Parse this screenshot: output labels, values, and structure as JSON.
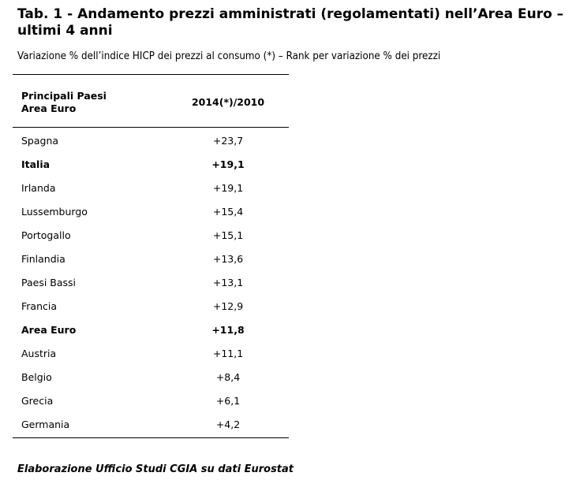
{
  "title": "Tab. 1 - Andamento prezzi amministrati (regolamentati) nell’Area Euro – ultimi 4 anni",
  "subtitle": "Variazione % dell’indice HICP dei prezzi al consumo (*) – Rank per variazione % dei prezzi",
  "table": {
    "headers": [
      "Principali Paesi Area Euro",
      "2014(*)/2010"
    ],
    "rows": [
      {
        "country": "Spagna",
        "value": "+23,7",
        "bold": false
      },
      {
        "country": "Italia",
        "value": "+19,1",
        "bold": true
      },
      {
        "country": "Irlanda",
        "value": "+19,1",
        "bold": false
      },
      {
        "country": "Lussemburgo",
        "value": "+15,4",
        "bold": false
      },
      {
        "country": "Portogallo",
        "value": "+15,1",
        "bold": false
      },
      {
        "country": "Finlandia",
        "value": "+13,6",
        "bold": false
      },
      {
        "country": "Paesi Bassi",
        "value": "+13,1",
        "bold": false
      },
      {
        "country": "Francia",
        "value": "+12,9",
        "bold": false
      },
      {
        "country": "Area Euro",
        "value": "+11,8",
        "bold": true
      },
      {
        "country": "Austria",
        "value": "+11,1",
        "bold": false
      },
      {
        "country": "Belgio",
        "value": "+8,4",
        "bold": false
      },
      {
        "country": "Grecia",
        "value": "+6,1",
        "bold": false
      },
      {
        "country": "Germania",
        "value": "+4,2",
        "bold": false
      }
    ]
  },
  "footer": "Elaborazione Ufficio Studi CGIA su dati Eurostat"
}
